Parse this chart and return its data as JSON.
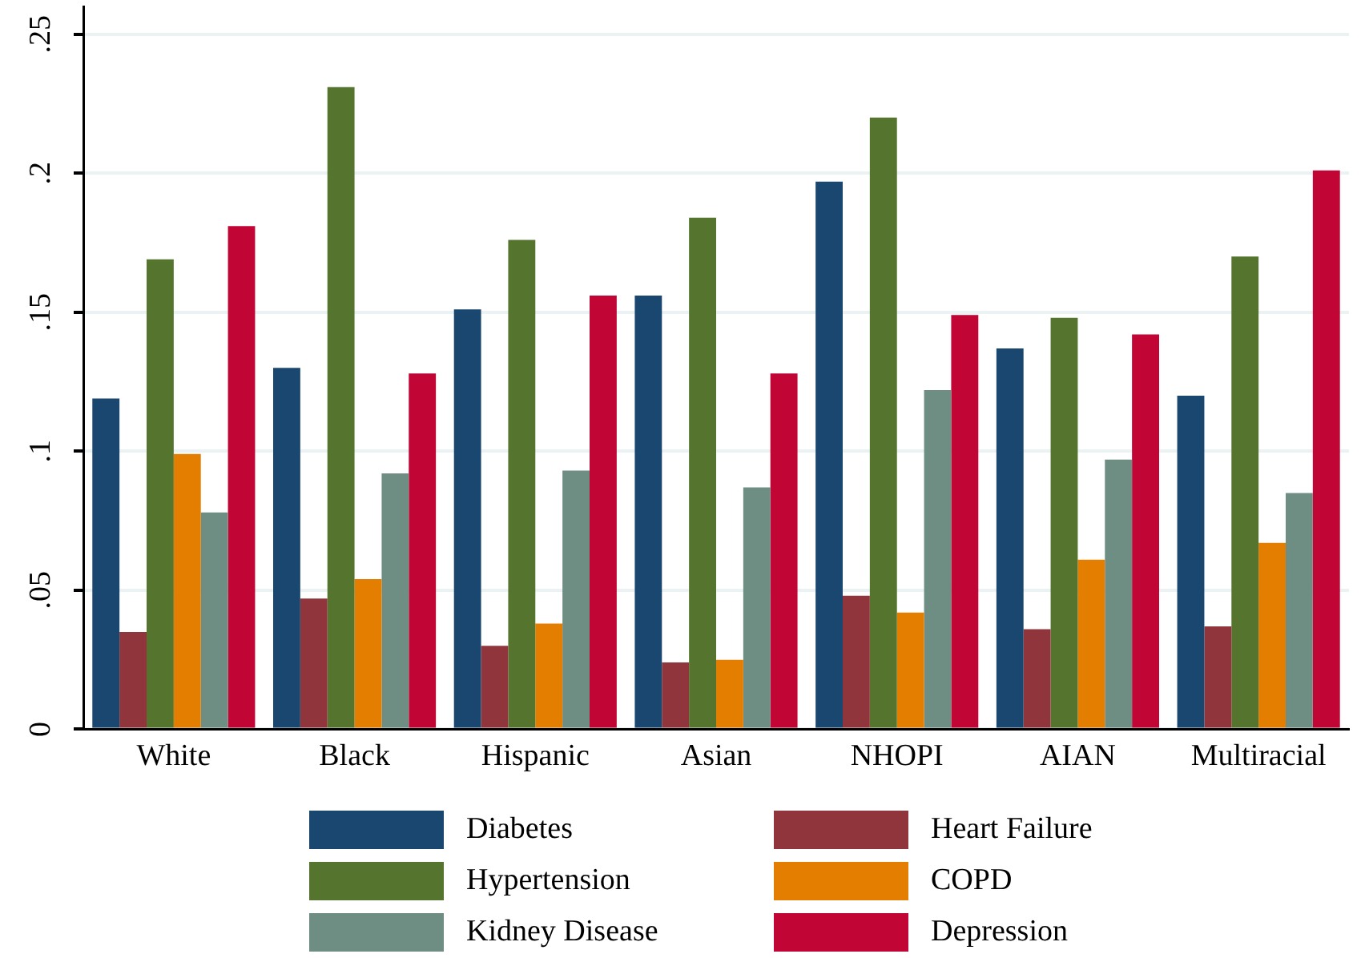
{
  "chart_data": {
    "type": "bar",
    "categories": [
      "White",
      "Black",
      "Hispanic",
      "Asian",
      "NHOPI",
      "AIAN",
      "Multiracial"
    ],
    "series": [
      {
        "name": "Diabetes",
        "color": "#1a476f",
        "values": [
          0.119,
          0.13,
          0.151,
          0.156,
          0.197,
          0.137,
          0.12
        ]
      },
      {
        "name": "Heart Failure",
        "color": "#90353b",
        "values": [
          0.035,
          0.047,
          0.03,
          0.024,
          0.048,
          0.036,
          0.037
        ]
      },
      {
        "name": "Hypertension",
        "color": "#55752f",
        "values": [
          0.169,
          0.231,
          0.176,
          0.184,
          0.22,
          0.148,
          0.17
        ]
      },
      {
        "name": "COPD",
        "color": "#e37e00",
        "values": [
          0.099,
          0.054,
          0.038,
          0.025,
          0.042,
          0.061,
          0.067
        ]
      },
      {
        "name": "Kidney Disease",
        "color": "#6e8e84",
        "values": [
          0.078,
          0.092,
          0.093,
          0.087,
          0.122,
          0.097,
          0.085
        ]
      },
      {
        "name": "Depression",
        "color": "#c10534",
        "values": [
          0.181,
          0.128,
          0.156,
          0.128,
          0.149,
          0.142,
          0.201
        ]
      }
    ],
    "ylim": [
      0,
      0.26
    ],
    "yticks": [
      0,
      {
        "value": 0.05,
        "label": ".05"
      },
      {
        "value": 0.1,
        "label": ".1"
      },
      {
        "value": 0.15,
        "label": ".15"
      },
      {
        "value": 0.2,
        "label": ".2"
      },
      {
        "value": 0.25,
        "label": ".25"
      }
    ],
    "grid": "y",
    "legend": "bottom"
  }
}
